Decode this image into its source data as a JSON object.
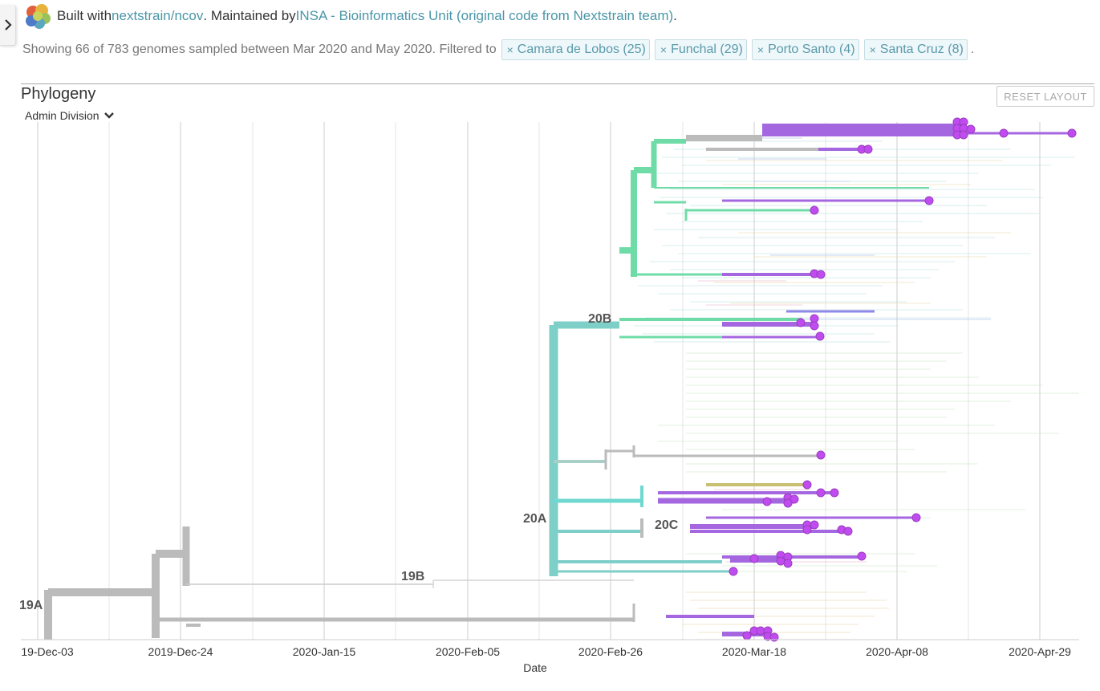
{
  "byline": {
    "built_with_prefix": "Built with ",
    "built_with_link": "nextstrain/ncov",
    "maintained_prefix": ". Maintained by ",
    "maintainer_link": "INSA - Bioinformatics Unit (original code from Nextstrain team)",
    "suffix": "."
  },
  "filters": {
    "summary": "Showing 66 of 783 genomes sampled between Mar 2020 and May 2020. Filtered to",
    "chips": [
      {
        "label": "Camara de Lobos (25)"
      },
      {
        "label": "Funchal (29)"
      },
      {
        "label": "Porto Santo (4)"
      },
      {
        "label": "Santa Cruz (8)"
      }
    ],
    "end": "."
  },
  "panel": {
    "title": "Phylogeny",
    "reset_label": "RESET LAYOUT",
    "color_by": "Admin Division"
  },
  "axis": {
    "xlabel": "Date",
    "ticks": [
      "19-Dec-03",
      "2019-Dec-24",
      "2020-Jan-15",
      "2020-Feb-05",
      "2020-Feb-26",
      "2020-Mar-18",
      "2020-Apr-08",
      "2020-Apr-29"
    ]
  },
  "clades": [
    "19A",
    "19B",
    "20A",
    "20B",
    "20C"
  ],
  "colors": {
    "highlight": "#a567e0",
    "tip": "#c04cf0",
    "clade_20A": "#7dcfc8",
    "clade_20B": "#6fdca8",
    "grey": "#bbbbbb",
    "link": "#4a96a7"
  }
}
